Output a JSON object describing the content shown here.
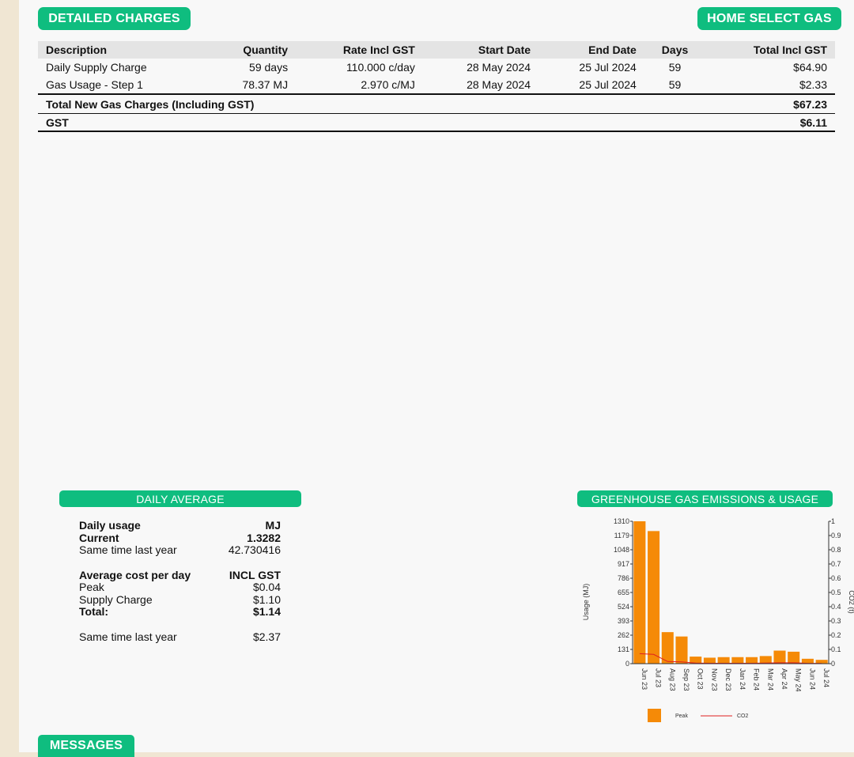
{
  "detailed_charges": {
    "heading": "DETAILED CHARGES",
    "plan": "HOME SELECT GAS",
    "columns": [
      "Description",
      "Quantity",
      "Rate Incl GST",
      "Start Date",
      "End Date",
      "Days",
      "Total Incl GST"
    ],
    "rows": [
      [
        "Daily Supply Charge",
        "59 days",
        "110.000 c/day",
        "28 May 2024",
        "25 Jul 2024",
        "59",
        "$64.90"
      ],
      [
        "Gas Usage - Step 1",
        "78.37 MJ",
        "2.970 c/MJ",
        "28 May 2024",
        "25 Jul 2024",
        "59",
        "$2.33"
      ]
    ],
    "total_label": "Total New Gas Charges (Including GST)",
    "total_value": "$67.23",
    "gst_label": "GST",
    "gst_value": "$6.11"
  },
  "daily_average": {
    "heading": "DAILY AVERAGE",
    "usage_label": "Daily usage",
    "usage_unit": "MJ",
    "current_label": "Current",
    "current_value": "1.3282",
    "last_year_label": "Same time last year",
    "last_year_value": "42.730416",
    "cost_label": "Average cost per day",
    "cost_unit": "INCL GST",
    "peak_label": "Peak",
    "peak_value": "$0.04",
    "supply_label": "Supply Charge",
    "supply_value": "$1.10",
    "total_label": "Total:",
    "total_value": "$1.14",
    "cost_last_year_label": "Same time last year",
    "cost_last_year_value": "$2.37"
  },
  "greenhouse": {
    "heading": "GREENHOUSE GAS EMISSIONS & USAGE"
  },
  "messages": {
    "heading": "MESSAGES"
  },
  "colors": {
    "accent": "#0fbd7f",
    "bar": "#f58a07",
    "co2_line": "#e02020",
    "page_margin": "#f0e6d3"
  },
  "chart_data": {
    "type": "bar",
    "categories": [
      "Jun 23",
      "Jul 23",
      "Aug 23",
      "Sep 23",
      "Oct 23",
      "Nov 23",
      "Dec 23",
      "Jan 24",
      "Feb 24",
      "Mar 24",
      "Apr 24",
      "May 24",
      "Jun 24",
      "Jul 24"
    ],
    "series": [
      {
        "name": "Peak",
        "type": "bar",
        "axis": "left",
        "values": [
          1310,
          1220,
          290,
          250,
          65,
          55,
          60,
          60,
          60,
          70,
          120,
          110,
          45,
          35
        ]
      },
      {
        "name": "CO2",
        "type": "line",
        "axis": "right",
        "values": [
          0.07,
          0.065,
          0.015,
          0.012,
          0.004,
          0.003,
          0.003,
          0.003,
          0.003,
          0.004,
          0.006,
          0.006,
          0.002,
          0.002
        ]
      }
    ],
    "ylabel": "Usage (MJ)",
    "y2label": "CO2 (t)",
    "yticks": [
      "0",
      "131",
      "262",
      "393",
      "524",
      "655",
      "786",
      "917",
      "1048",
      "1179",
      "1310"
    ],
    "y2ticks": [
      "0",
      "0.1",
      "0.2",
      "0.3",
      "0.4",
      "0.5",
      "0.6",
      "0.7",
      "0.8",
      "0.9",
      "1"
    ],
    "ylim": [
      0,
      1310
    ],
    "y2lim": [
      0,
      1
    ],
    "legend": [
      "Peak",
      "CO2"
    ],
    "legend_position": "bottom",
    "grid": false
  }
}
